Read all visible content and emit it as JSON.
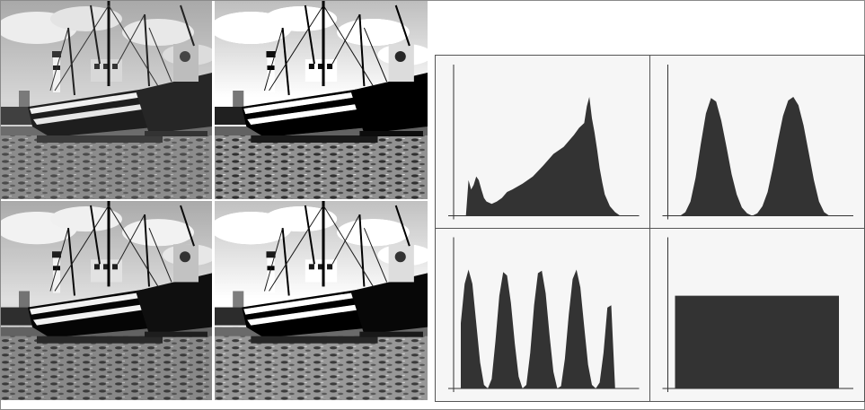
{
  "figure": {
    "photos": [
      {
        "name": "photo-original"
      },
      {
        "name": "photo-bimodal"
      },
      {
        "name": "photo-multimodal"
      },
      {
        "name": "photo-equalized"
      }
    ],
    "colors": {
      "hist_fill": "#333333",
      "panel_bg": "#f6f6f6",
      "axis": "#333333",
      "divider": "#555555"
    }
  },
  "chart_data": [
    {
      "type": "area",
      "panel": "top-left",
      "title": "",
      "xlabel": "",
      "ylabel": "",
      "xlim": [
        0,
        255
      ],
      "ylim": [
        0,
        1
      ],
      "grid": false,
      "x": [
        0,
        8,
        12,
        16,
        20,
        24,
        28,
        32,
        36,
        40,
        48,
        56,
        64,
        72,
        80,
        96,
        112,
        128,
        144,
        160,
        176,
        184,
        192,
        196,
        200,
        204,
        208,
        212,
        216,
        220,
        224,
        232,
        240,
        248,
        255
      ],
      "series": [
        {
          "values": [
            0,
            0,
            0.3,
            0.22,
            0.26,
            0.33,
            0.3,
            0.22,
            0.15,
            0.12,
            0.1,
            0.12,
            0.15,
            0.2,
            0.22,
            0.27,
            0.33,
            0.42,
            0.52,
            0.58,
            0.68,
            0.74,
            0.78,
            0.92,
            1.0,
            0.82,
            0.7,
            0.56,
            0.4,
            0.28,
            0.18,
            0.08,
            0.03,
            0,
            0
          ]
        }
      ]
    },
    {
      "type": "area",
      "panel": "top-right",
      "title": "",
      "xlabel": "",
      "ylabel": "",
      "xlim": [
        0,
        255
      ],
      "ylim": [
        0,
        1
      ],
      "grid": false,
      "x": [
        0,
        8,
        16,
        24,
        32,
        40,
        48,
        56,
        64,
        72,
        80,
        88,
        96,
        104,
        112,
        120,
        128,
        136,
        144,
        152,
        160,
        168,
        176,
        184,
        192,
        200,
        208,
        216,
        224,
        232,
        240,
        248,
        255
      ],
      "series": [
        {
          "values": [
            0,
            0,
            0.03,
            0.12,
            0.32,
            0.6,
            0.86,
            0.99,
            0.96,
            0.8,
            0.58,
            0.35,
            0.18,
            0.07,
            0.02,
            0.0,
            0.02,
            0.08,
            0.2,
            0.4,
            0.63,
            0.84,
            0.97,
            1.0,
            0.93,
            0.76,
            0.53,
            0.3,
            0.12,
            0.03,
            0,
            0,
            0
          ]
        }
      ]
    },
    {
      "type": "area",
      "panel": "bottom-left",
      "title": "",
      "xlabel": "",
      "ylabel": "",
      "xlim": [
        0,
        255
      ],
      "ylim": [
        0,
        1
      ],
      "grid": false,
      "x": [
        0,
        6,
        12,
        18,
        24,
        30,
        36,
        42,
        48,
        54,
        60,
        66,
        72,
        78,
        84,
        90,
        96,
        102,
        108,
        114,
        120,
        126,
        132,
        138,
        144,
        150,
        156,
        162,
        168,
        174,
        180,
        186,
        192,
        198,
        204,
        210,
        216,
        222,
        228,
        234,
        240,
        246,
        252,
        255
      ],
      "series": [
        {
          "values": [
            0.55,
            0.88,
            1.0,
            0.88,
            0.55,
            0.22,
            0.03,
            0.0,
            0.08,
            0.4,
            0.78,
            0.98,
            0.95,
            0.72,
            0.38,
            0.1,
            0.0,
            0.03,
            0.3,
            0.7,
            0.97,
            0.99,
            0.8,
            0.45,
            0.14,
            0.0,
            0.02,
            0.25,
            0.62,
            0.92,
            1.0,
            0.85,
            0.52,
            0.2,
            0.03,
            0.0,
            0.05,
            0.3,
            0.68,
            0.7,
            0.0,
            0,
            0,
            0
          ]
        }
      ]
    },
    {
      "type": "area",
      "panel": "bottom-right",
      "title": "",
      "xlabel": "",
      "ylabel": "",
      "xlim": [
        0,
        255
      ],
      "ylim": [
        0,
        1
      ],
      "grid": false,
      "x": [
        0,
        255
      ],
      "series": [
        {
          "values": [
            0.78,
            0.78
          ]
        }
      ]
    }
  ]
}
